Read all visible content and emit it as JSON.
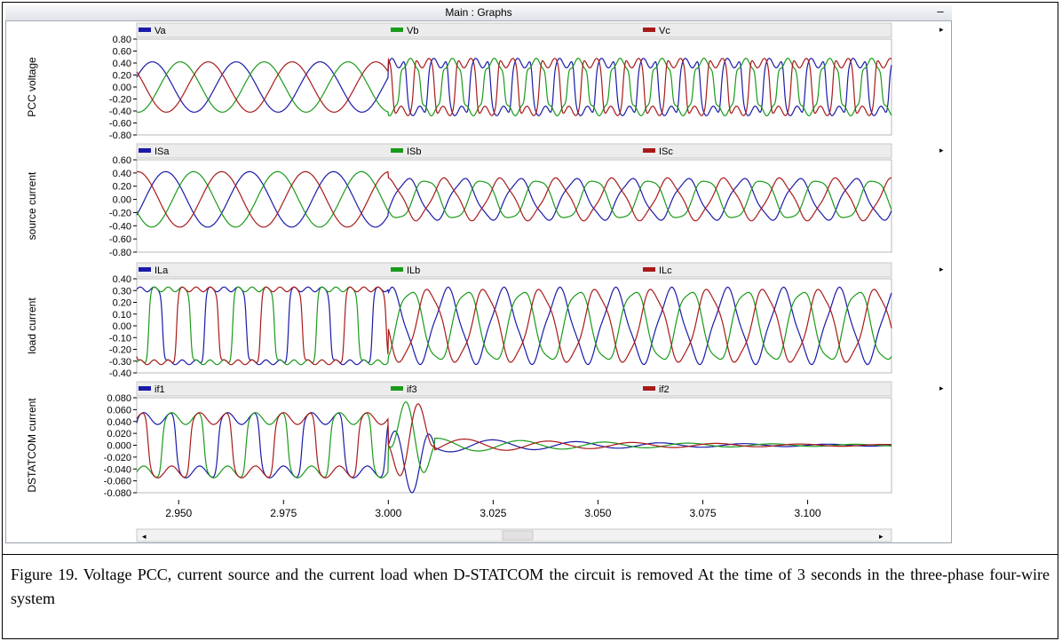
{
  "window": {
    "title": "Main : Graphs",
    "minimize_label": "–"
  },
  "caption": "Figure 19. Voltage PCC, current source and the current load when D-STATCOM the circuit is removed At the time of 3 seconds in the three-phase four-wire system",
  "colors": {
    "phase_a": "#1a1aa8",
    "phase_b": "#1a9a1a",
    "phase_c": "#a81a1a"
  },
  "chart_data": [
    {
      "type": "line",
      "ylabel": "PCC voltage",
      "ylim": [
        -0.8,
        0.8
      ],
      "yticks": [
        "0.80",
        "0.60",
        "0.40",
        "0.20",
        "0.00",
        "-0.20",
        "-0.40",
        "-0.60",
        "-0.80"
      ],
      "xlim": [
        2.94,
        3.12
      ],
      "series": [
        {
          "name": "Va",
          "color": "#1a1aa8"
        },
        {
          "name": "Vb",
          "color": "#1a9a1a"
        },
        {
          "name": "Vc",
          "color": "#a81a1a"
        }
      ]
    },
    {
      "type": "line",
      "ylabel": "source current",
      "ylim": [
        -0.8,
        0.6
      ],
      "yticks": [
        "0.60",
        "0.40",
        "0.20",
        "0.00",
        "-0.20",
        "-0.40",
        "-0.60",
        "-0.80"
      ],
      "xlim": [
        2.94,
        3.12
      ],
      "series": [
        {
          "name": "ISa",
          "color": "#1a1aa8"
        },
        {
          "name": "ISb",
          "color": "#1a9a1a"
        },
        {
          "name": "ISc",
          "color": "#a81a1a"
        }
      ]
    },
    {
      "type": "line",
      "ylabel": "load current",
      "ylim": [
        -0.4,
        0.4
      ],
      "yticks": [
        "0.40",
        "0.30",
        "0.20",
        "0.10",
        "0.00",
        "-0.10",
        "-0.20",
        "-0.30",
        "-0.40"
      ],
      "xlim": [
        2.94,
        3.12
      ],
      "series": [
        {
          "name": "ILa",
          "color": "#1a1aa8"
        },
        {
          "name": "ILb",
          "color": "#1a9a1a"
        },
        {
          "name": "ILc",
          "color": "#a81a1a"
        }
      ]
    },
    {
      "type": "line",
      "ylabel": "DSTATCOM current",
      "ylim": [
        -0.08,
        0.08
      ],
      "yticks": [
        "0.080",
        "0.060",
        "0.040",
        "0.020",
        "0.000",
        "-0.020",
        "-0.040",
        "-0.060",
        "-0.080"
      ],
      "xlim": [
        2.94,
        3.12
      ],
      "series": [
        {
          "name": "if1",
          "color": "#1a1aa8"
        },
        {
          "name": "if3",
          "color": "#1a9a1a"
        },
        {
          "name": "if2",
          "color": "#a81a1a"
        }
      ]
    }
  ],
  "xaxis": {
    "range": [
      2.94,
      3.12
    ],
    "ticks": [
      2.95,
      2.975,
      3.0,
      3.025,
      3.05,
      3.075,
      3.1
    ],
    "tick_labels": [
      "2.950",
      "2.975",
      "3.000",
      "3.025",
      "3.050",
      "3.075",
      "3.100"
    ]
  }
}
